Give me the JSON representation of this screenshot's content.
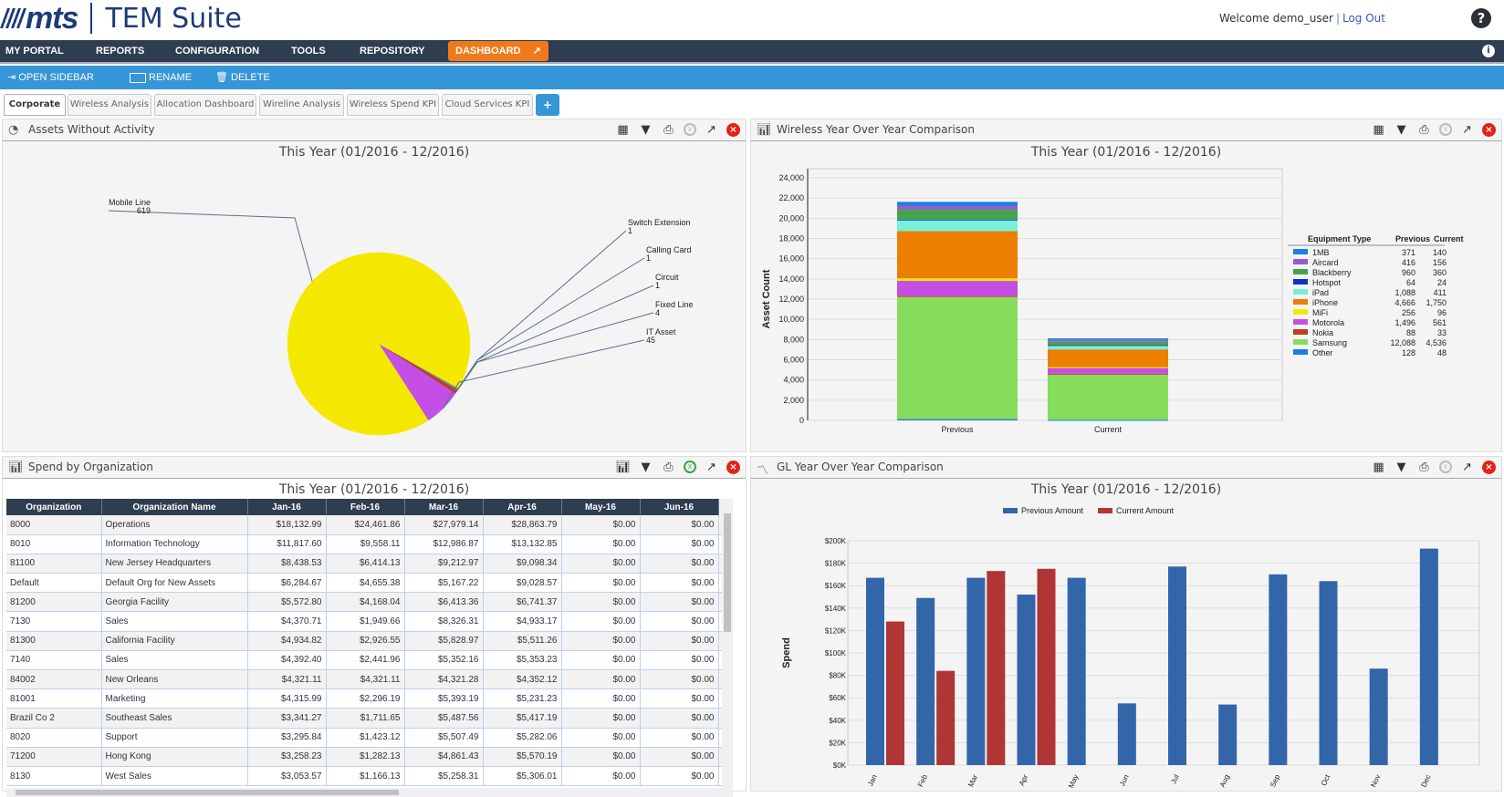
{
  "header": {
    "brand": "mts",
    "product": "TEM Suite",
    "welcome": "Welcome demo_user",
    "logout": "Log Out",
    "help_icon": "?"
  },
  "nav": {
    "items": [
      "MY PORTAL",
      "REPORTS",
      "CONFIGURATION",
      "TOOLS",
      "REPOSITORY"
    ],
    "active": "DASHBOARD",
    "info_icon": "i"
  },
  "toolbar": {
    "open_sidebar": "OPEN SIDEBAR",
    "rename": "RENAME",
    "delete": "DELETE"
  },
  "tabs": {
    "items": [
      "Corporate",
      "Wireless Analysis",
      "Allocation Dashboard",
      "Wireline Analysis",
      "Wireless Spend KPI",
      "Cloud Services KPI"
    ],
    "add": "+"
  },
  "period": "This Year (01/2016 - 12/2016)",
  "panels": {
    "assets": {
      "title": "Assets Without Activity"
    },
    "wireless": {
      "title": "Wireless Year Over Year Comparison"
    },
    "spend": {
      "title": "Spend by Organization"
    },
    "gl": {
      "title": "GL Year Over Year Comparison"
    }
  },
  "colors": {
    "accent": "#3596d8",
    "nav": "#2e3d50",
    "dashboard": "#f07a1a",
    "previous": "#3366a8",
    "current": "#b03535"
  },
  "chart_data": [
    {
      "type": "pie",
      "title": "This Year (01/2016 - 12/2016)",
      "slices": [
        {
          "label": "Mobile Line",
          "value": 619,
          "color": "#f5e800"
        },
        {
          "label": "IT Asset",
          "value": 45,
          "color": "#c44ee6"
        },
        {
          "label": "Fixed Line",
          "value": 4,
          "color": "#c43c1c"
        },
        {
          "label": "Circuit",
          "value": 1,
          "color": "#5a7fa0"
        },
        {
          "label": "Calling Card",
          "value": 1,
          "color": "#6aa0a0"
        },
        {
          "label": "Switch Extension",
          "value": 1,
          "color": "#4f6f90"
        }
      ]
    },
    {
      "type": "bar",
      "stacked": true,
      "title": "This Year (01/2016 - 12/2016)",
      "ylabel": "Asset Count",
      "ylim": [
        0,
        24000
      ],
      "yticks": [
        "0",
        "2,000",
        "4,000",
        "6,000",
        "8,000",
        "10,000",
        "12,000",
        "14,000",
        "16,000",
        "18,000",
        "20,000",
        "22,000",
        "24,000"
      ],
      "categories": [
        "Previous",
        "Current"
      ],
      "legend_header": [
        "Equipment Type",
        "Previous",
        "Current"
      ],
      "series": [
        {
          "name": "1MB",
          "color": "#1a7fe0",
          "values": [
            371,
            140
          ],
          "labels": [
            "371",
            "140"
          ]
        },
        {
          "name": "Aircard",
          "color": "#9060d0",
          "values": [
            416,
            156
          ],
          "labels": [
            "416",
            "156"
          ]
        },
        {
          "name": "Blackberry",
          "color": "#45a34a",
          "values": [
            960,
            360
          ],
          "labels": [
            "960",
            "360"
          ]
        },
        {
          "name": "Hotspot",
          "color": "#1030d0",
          "values": [
            64,
            24
          ],
          "labels": [
            "64",
            "24"
          ]
        },
        {
          "name": "iPad",
          "color": "#78f0d8",
          "values": [
            1088,
            411
          ],
          "labels": [
            "1,088",
            "411"
          ]
        },
        {
          "name": "iPhone",
          "color": "#ec7e00",
          "values": [
            4666,
            1750
          ],
          "labels": [
            "4,666",
            "1,750"
          ]
        },
        {
          "name": "MiFi",
          "color": "#f5e800",
          "values": [
            256,
            96
          ],
          "labels": [
            "256",
            "96"
          ]
        },
        {
          "name": "Motorola",
          "color": "#c44ee6",
          "values": [
            1496,
            561
          ],
          "labels": [
            "1,496",
            "561"
          ]
        },
        {
          "name": "Nokia",
          "color": "#c43c1c",
          "values": [
            88,
            33
          ],
          "labels": [
            "88",
            "33"
          ]
        },
        {
          "name": "Samsung",
          "color": "#88dc5c",
          "values": [
            12088,
            4536
          ],
          "labels": [
            "12,088",
            "4,536"
          ]
        },
        {
          "name": "Other",
          "color": "#1a7fe0",
          "values": [
            128,
            48
          ],
          "labels": [
            "128",
            "48"
          ]
        }
      ]
    },
    {
      "type": "bar",
      "title": "This Year (01/2016 - 12/2016)",
      "ylabel": "Spend",
      "ylim": [
        0,
        200000
      ],
      "yticks": [
        "$0K",
        "$20K",
        "$40K",
        "$60K",
        "$80K",
        "$100K",
        "$120K",
        "$140K",
        "$160K",
        "$180K",
        "$200K"
      ],
      "categories": [
        "Jan",
        "Feb",
        "Mar",
        "Apr",
        "May",
        "Jun",
        "Jul",
        "Aug",
        "Sep",
        "Oct",
        "Nov",
        "Dec"
      ],
      "legend": "top",
      "series": [
        {
          "name": "Previous Amount",
          "color": "#3366a8",
          "values": [
            167000,
            149000,
            167000,
            152000,
            167000,
            55000,
            177000,
            54000,
            170000,
            164000,
            86000,
            193000
          ]
        },
        {
          "name": "Current Amount",
          "color": "#b03535",
          "values": [
            128000,
            84000,
            173000,
            175000,
            0,
            0,
            0,
            0,
            0,
            0,
            0,
            0
          ]
        }
      ]
    }
  ],
  "spend_table": {
    "columns": [
      "Organization",
      "Organization Name",
      "Jan-16",
      "Feb-16",
      "Mar-16",
      "Apr-16",
      "May-16",
      "Jun-16"
    ],
    "rows": [
      [
        "8000",
        "Operations",
        "$18,132.99",
        "$24,461.86",
        "$27,979.14",
        "$28,863.79",
        "$0.00",
        "$0.00"
      ],
      [
        "8010",
        "Information Technology",
        "$11,817.60",
        "$9,558.11",
        "$12,986.87",
        "$13,132.85",
        "$0.00",
        "$0.00"
      ],
      [
        "81100",
        "New Jersey Headquarters",
        "$8,438.53",
        "$6,414.13",
        "$9,212.97",
        "$9,098.34",
        "$0.00",
        "$0.00"
      ],
      [
        "Default",
        "Default Org for New Assets",
        "$6,284.67",
        "$4,655.38",
        "$5,167.22",
        "$9,028.57",
        "$0.00",
        "$0.00"
      ],
      [
        "81200",
        "Georgia Facility",
        "$5,572.80",
        "$4,168.04",
        "$6,413.36",
        "$6,741.37",
        "$0.00",
        "$0.00"
      ],
      [
        "7130",
        "Sales",
        "$4,370.71",
        "$1,949.66",
        "$8,326.31",
        "$4,933.17",
        "$0.00",
        "$0.00"
      ],
      [
        "81300",
        "California Facility",
        "$4,934.82",
        "$2,926.55",
        "$5,828.97",
        "$5,511.26",
        "$0.00",
        "$0.00"
      ],
      [
        "7140",
        "Sales",
        "$4,392.40",
        "$2,441.96",
        "$5,352.16",
        "$5,353.23",
        "$0.00",
        "$0.00"
      ],
      [
        "84002",
        "New Orleans",
        "$4,321.11",
        "$4,321.11",
        "$4,321.28",
        "$4,352.12",
        "$0.00",
        "$0.00"
      ],
      [
        "81001",
        "Marketing",
        "$4,315.99",
        "$2,296.19",
        "$5,393.19",
        "$5,231.23",
        "$0.00",
        "$0.00"
      ],
      [
        "Brazil Co 2",
        "Southeast Sales",
        "$3,341.27",
        "$1,711.65",
        "$5,487.56",
        "$5,417.19",
        "$0.00",
        "$0.00"
      ],
      [
        "8020",
        "Support",
        "$3,295.84",
        "$1,423.12",
        "$5,507.49",
        "$5,282.06",
        "$0.00",
        "$0.00"
      ],
      [
        "71200",
        "Hong Kong",
        "$3,258.23",
        "$1,282.13",
        "$4,861.43",
        "$5,570.19",
        "$0.00",
        "$0.00"
      ],
      [
        "8130",
        "West Sales",
        "$3,053.57",
        "$1,166.13",
        "$5,258.31",
        "$5,306.01",
        "$0.00",
        "$0.00"
      ]
    ]
  }
}
